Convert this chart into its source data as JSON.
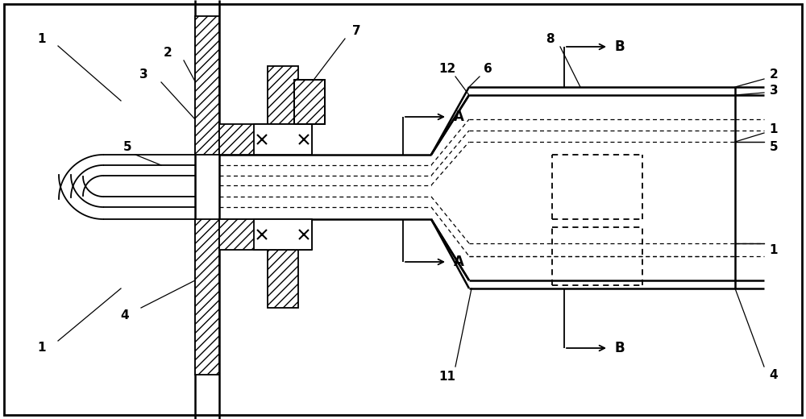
{
  "fig_width": 10.0,
  "fig_height": 5.2,
  "dpi": 100,
  "bg_color": "#ffffff",
  "xlim": [
    0,
    10
  ],
  "ylim": [
    0,
    5.2
  ]
}
